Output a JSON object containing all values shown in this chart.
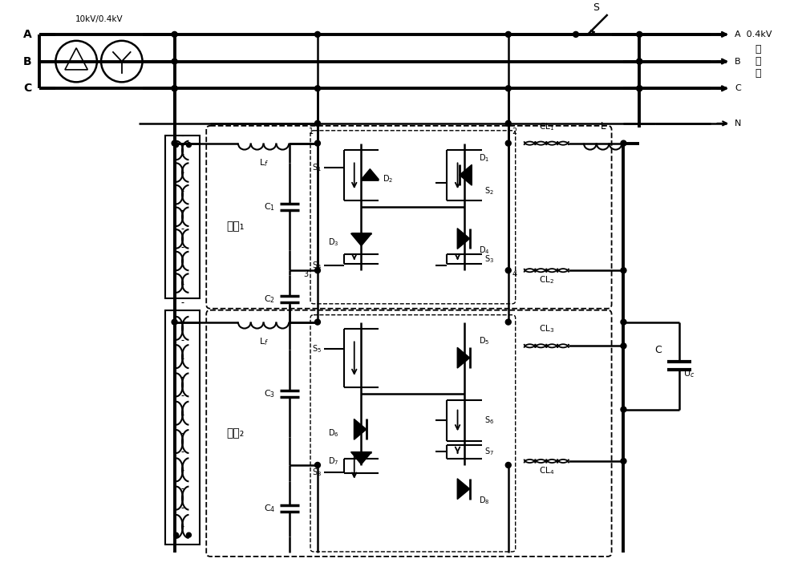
{
  "background": "#ffffff",
  "fig_width": 10.0,
  "fig_height": 7.27,
  "labels": {
    "voltage": "10kV/0.4kV",
    "mod1": "模块₁",
    "mod2": "模块₂",
    "out_user": "用\n户\n侧"
  }
}
